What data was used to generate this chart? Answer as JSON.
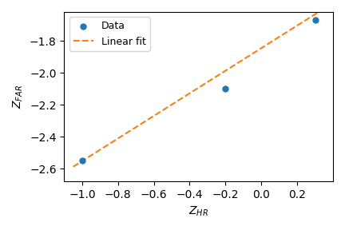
{
  "data_x": [
    -1.0,
    -0.2,
    0.3
  ],
  "data_y": [
    -2.55,
    -2.1,
    -1.67
  ],
  "fit_x": [
    -1.05,
    0.35
  ],
  "fit_slope": 0.706,
  "fit_intercept": -1.846,
  "data_color": "#1f77b4",
  "fit_color": "#ff7f0e",
  "xlabel": "$Z_{HR}$",
  "ylabel": "$Z_{FAR}$",
  "legend_data": "Data",
  "legend_fit": "Linear fit",
  "xlim": [
    -1.1,
    0.4
  ],
  "ylim": [
    -2.68,
    -1.62
  ],
  "xticks": [
    -1.0,
    -0.8,
    -0.6,
    -0.4,
    -0.2,
    0.0,
    0.2
  ],
  "marker_size": 25,
  "linewidth": 1.5
}
